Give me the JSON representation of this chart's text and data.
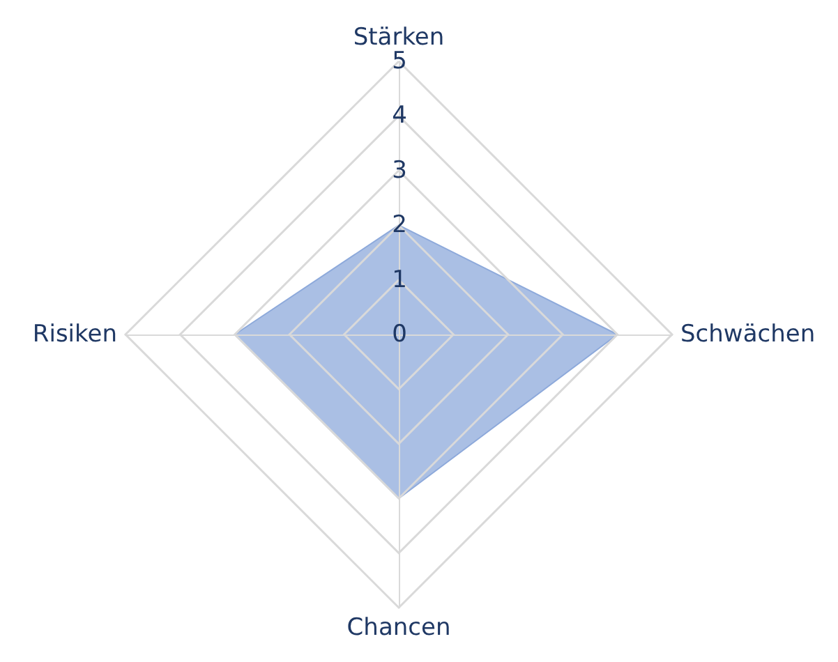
{
  "chart_data": {
    "type": "radar",
    "categories": [
      "Stärken",
      "Schwächen",
      "Chancen",
      "Risiken"
    ],
    "series": [
      {
        "color": "#8eaadb",
        "values": [
          2,
          4,
          3,
          3
        ]
      }
    ],
    "ylim": [
      0,
      5
    ],
    "yticks": [
      0,
      1,
      2,
      3,
      4,
      5
    ],
    "grid": true,
    "marker": "none"
  }
}
